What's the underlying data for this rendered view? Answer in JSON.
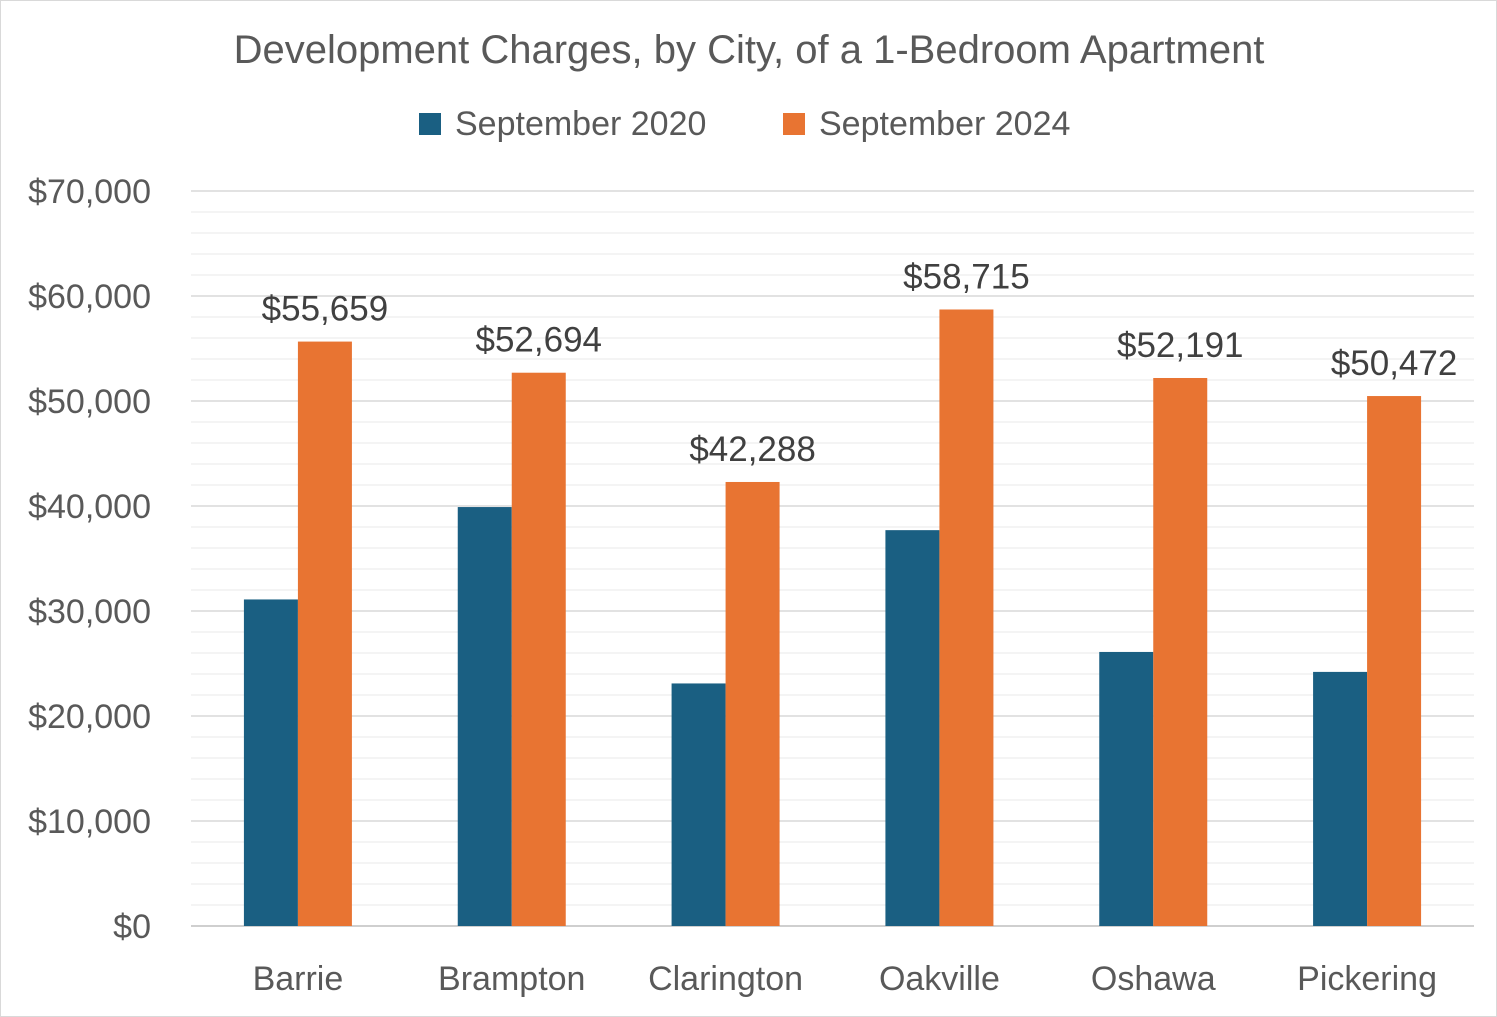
{
  "chart_data": {
    "type": "bar",
    "title": "Development Charges, by City, of a 1-Bedroom Apartment",
    "xlabel": "",
    "ylabel": "",
    "categories": [
      "Barrie",
      "Brampton",
      "Clarington",
      "Oakville",
      "Oshawa",
      "Pickering"
    ],
    "series": [
      {
        "name": "September 2020",
        "color": "#1a5f82",
        "values": [
          31100,
          39900,
          23100,
          37700,
          26100,
          24200
        ]
      },
      {
        "name": "September 2024",
        "color": "#e87432",
        "values": [
          55659,
          52694,
          42288,
          58715,
          52191,
          50472
        ]
      }
    ],
    "data_labels": {
      "series": "September 2024",
      "labels": [
        "$55,659",
        "$52,694",
        "$42,288",
        "$58,715",
        "$52,191",
        "$50,472"
      ]
    },
    "ylim": [
      0,
      70000
    ],
    "yticks": [
      0,
      10000,
      20000,
      30000,
      40000,
      50000,
      60000,
      70000
    ],
    "ytick_labels": [
      "$0",
      "$10,000",
      "$20,000",
      "$30,000",
      "$40,000",
      "$50,000",
      "$60,000",
      "$70,000"
    ],
    "grid": {
      "major": true,
      "minor": true
    },
    "legend_position": "top"
  }
}
